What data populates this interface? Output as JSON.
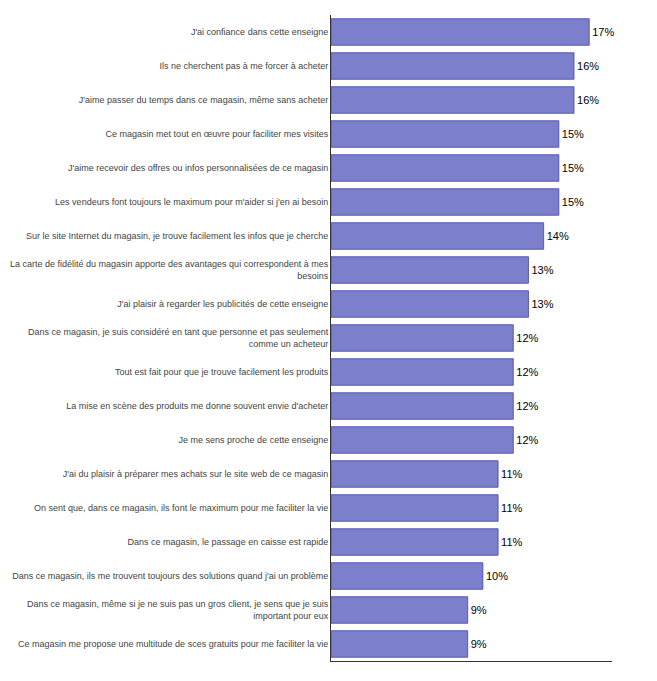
{
  "chart_data": {
    "type": "bar",
    "orientation": "horizontal",
    "categories": [
      "J'ai confiance dans cette enseigne",
      "Ils ne cherchent pas à me forcer à acheter",
      "J'aime passer du temps dans ce magasin, même sans acheter",
      "Ce magasin met tout en œuvre pour faciliter mes visites",
      "J'aime recevoir des offres ou infos personnalisées de ce magasin",
      "Les vendeurs font toujours le maximum pour m'aider si j'en ai besoin",
      "Sur le site Internet du magasin, je trouve facilement les infos que je cherche",
      "La carte de fidélité du magasin apporte des avantages qui correspondent à mes\nbesoins",
      "J'ai plaisir à regarder les publicités de cette enseigne",
      "Dans ce magasin, je suis considéré en tant que personne et pas seulement\ncomme un acheteur",
      "Tout est fait pour que je trouve facilement les produits",
      "La mise en scène des produits me donne souvent envie d'acheter",
      "Je me sens proche de cette enseigne",
      "J'ai du plaisir à préparer mes achats sur le site web de ce magasin",
      "On sent que, dans ce magasin, ils font le maximum pour me faciliter la vie",
      "Dans ce magasin, le passage en caisse est rapide",
      "Dans ce magasin, ils me trouvent toujours des solutions quand j'ai un problème",
      "Dans ce magasin, même si je ne suis pas un gros client, je sens que je suis\nimportant pour eux",
      "Ce magasin me propose une multitude de sces gratuits pour me faciliter la vie"
    ],
    "values": [
      17,
      16,
      16,
      15,
      15,
      15,
      14,
      13,
      13,
      12,
      12,
      12,
      12,
      11,
      11,
      11,
      10,
      9,
      9
    ],
    "value_labels": [
      "17%",
      "16%",
      "16%",
      "15%",
      "15%",
      "15%",
      "14%",
      "13%",
      "13%",
      "12%",
      "12%",
      "12%",
      "12%",
      "11%",
      "11%",
      "11%",
      "10%",
      "9%",
      "9%"
    ],
    "data_labels": true,
    "color": "#7B7FCC",
    "xlim": [
      0,
      18.5
    ],
    "tick_labels": "y",
    "grid": false
  }
}
